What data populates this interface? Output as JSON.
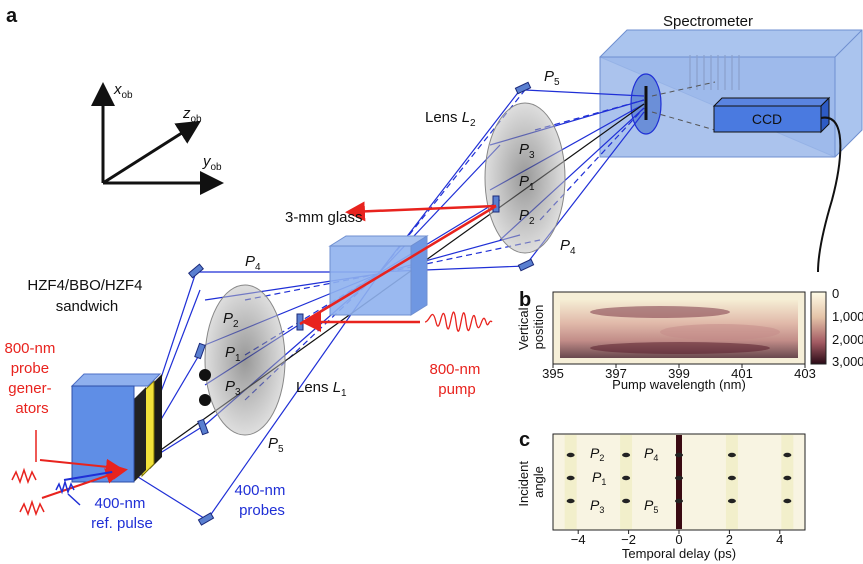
{
  "panel_labels": {
    "a": "a",
    "b": "b",
    "c": "c"
  },
  "axes": {
    "x": "x",
    "x_sub": "ob",
    "y": "y",
    "y_sub": "ob",
    "z": "z",
    "z_sub": "ob"
  },
  "spectrometer": {
    "title": "Spectrometer",
    "detector": "CCD"
  },
  "lens_l2": {
    "prefix": "Lens ",
    "name": "L",
    "sub": "2"
  },
  "lens_l1": {
    "prefix": "Lens ",
    "name": "L",
    "sub": "1"
  },
  "glass": "3-mm glass",
  "sandwich": [
    "HZF4/BBO/HZF4",
    "sandwich"
  ],
  "probe_generators": [
    "800-nm",
    "probe",
    "gener-",
    "ators"
  ],
  "pump": [
    "800-nm",
    "pump"
  ],
  "ref_pulse": [
    "400-nm",
    "ref. pulse"
  ],
  "probes": [
    "400-nm",
    "probes"
  ],
  "beams": {
    "p1": {
      "name": "P",
      "sub": "1"
    },
    "p2": {
      "name": "P",
      "sub": "2"
    },
    "p3": {
      "name": "P",
      "sub": "3"
    },
    "p4": {
      "name": "P",
      "sub": "4"
    },
    "p5": {
      "name": "P",
      "sub": "5"
    }
  },
  "colors": {
    "probe_blue": "#1f2fd6",
    "pump_red": "#e8231e",
    "glass_blue": "#7fa3e6"
  },
  "chart_b": {
    "ylabel": [
      "Vertical",
      "position"
    ],
    "xlabel": "Pump wavelength (nm)",
    "xticks": [
      "395",
      "397",
      "399",
      "401",
      "403"
    ],
    "colorbar_ticks": [
      "0",
      "1,000",
      "2,000",
      "3,000"
    ]
  },
  "chart_c": {
    "ylabel": [
      "Incident",
      "angle"
    ],
    "xlabel": "Temporal delay (ps)",
    "xticks": [
      "−4",
      "−2",
      "0",
      "2",
      "4"
    ],
    "peak_delays_ps": [
      -4.3,
      -2.1,
      0,
      2.1,
      4.3
    ],
    "labels": {
      "p2": "P",
      "p2_sub": "2",
      "p4": "P",
      "p4_sub": "4",
      "p1": "P",
      "p1_sub": "1",
      "p3": "P",
      "p3_sub": "3",
      "p5": "P",
      "p5_sub": "5"
    }
  }
}
